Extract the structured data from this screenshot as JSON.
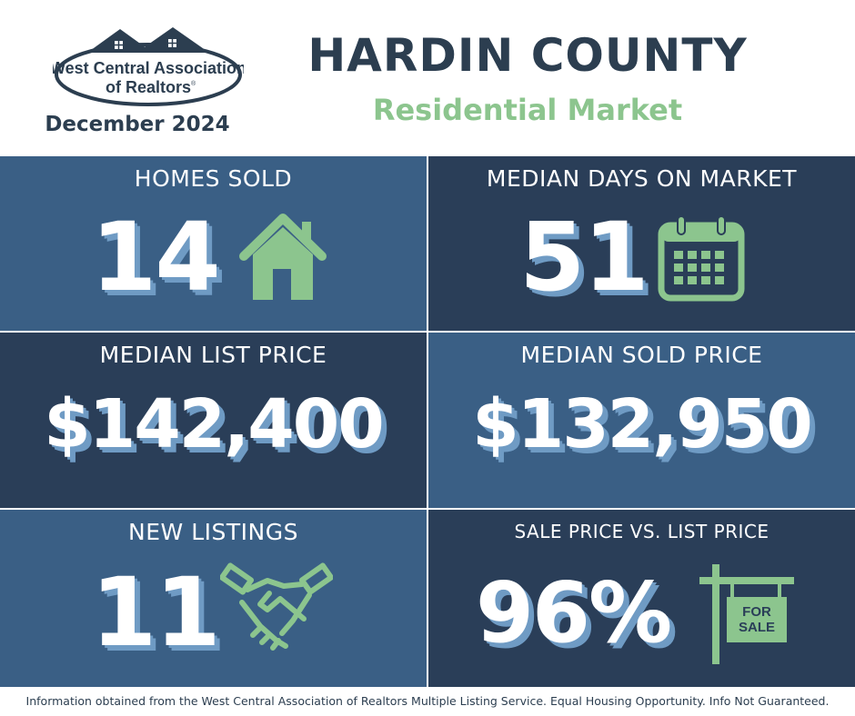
{
  "header": {
    "logo_line1": "West Central Association",
    "logo_line2": "of Realtors",
    "logo_registered": "®",
    "date": "December 2024",
    "title": "HARDIN COUNTY",
    "subtitle": "Residential Market"
  },
  "stats": {
    "homes_sold": {
      "label": "HOMES SOLD",
      "value": "14",
      "icon": "house-icon"
    },
    "median_days": {
      "label": "MEDIAN DAYS ON MARKET",
      "value": "51",
      "icon": "calendar-icon"
    },
    "median_list": {
      "label": "MEDIAN LIST PRICE",
      "value": "$142,400"
    },
    "median_sold": {
      "label": "MEDIAN SOLD PRICE",
      "value": "$132,950"
    },
    "new_listings": {
      "label": "NEW LISTINGS",
      "value": "11",
      "icon": "handshake-icon"
    },
    "sale_vs_list": {
      "label": "SALE PRICE VS. LIST PRICE",
      "value": "96%",
      "icon": "for-sale-sign-icon",
      "sign_line1": "FOR",
      "sign_line2": "SALE"
    }
  },
  "footer": {
    "text": "Information obtained from the West Central Association of Realtors Multiple Listing Service. Equal Housing Opportunity. Info Not Guaranteed."
  },
  "colors": {
    "navy": "#2c3e50",
    "green": "#8cc58e",
    "panel_light": "#3a5f85",
    "panel_dark": "#2a3e58",
    "shadow": "#6f9bc4"
  }
}
